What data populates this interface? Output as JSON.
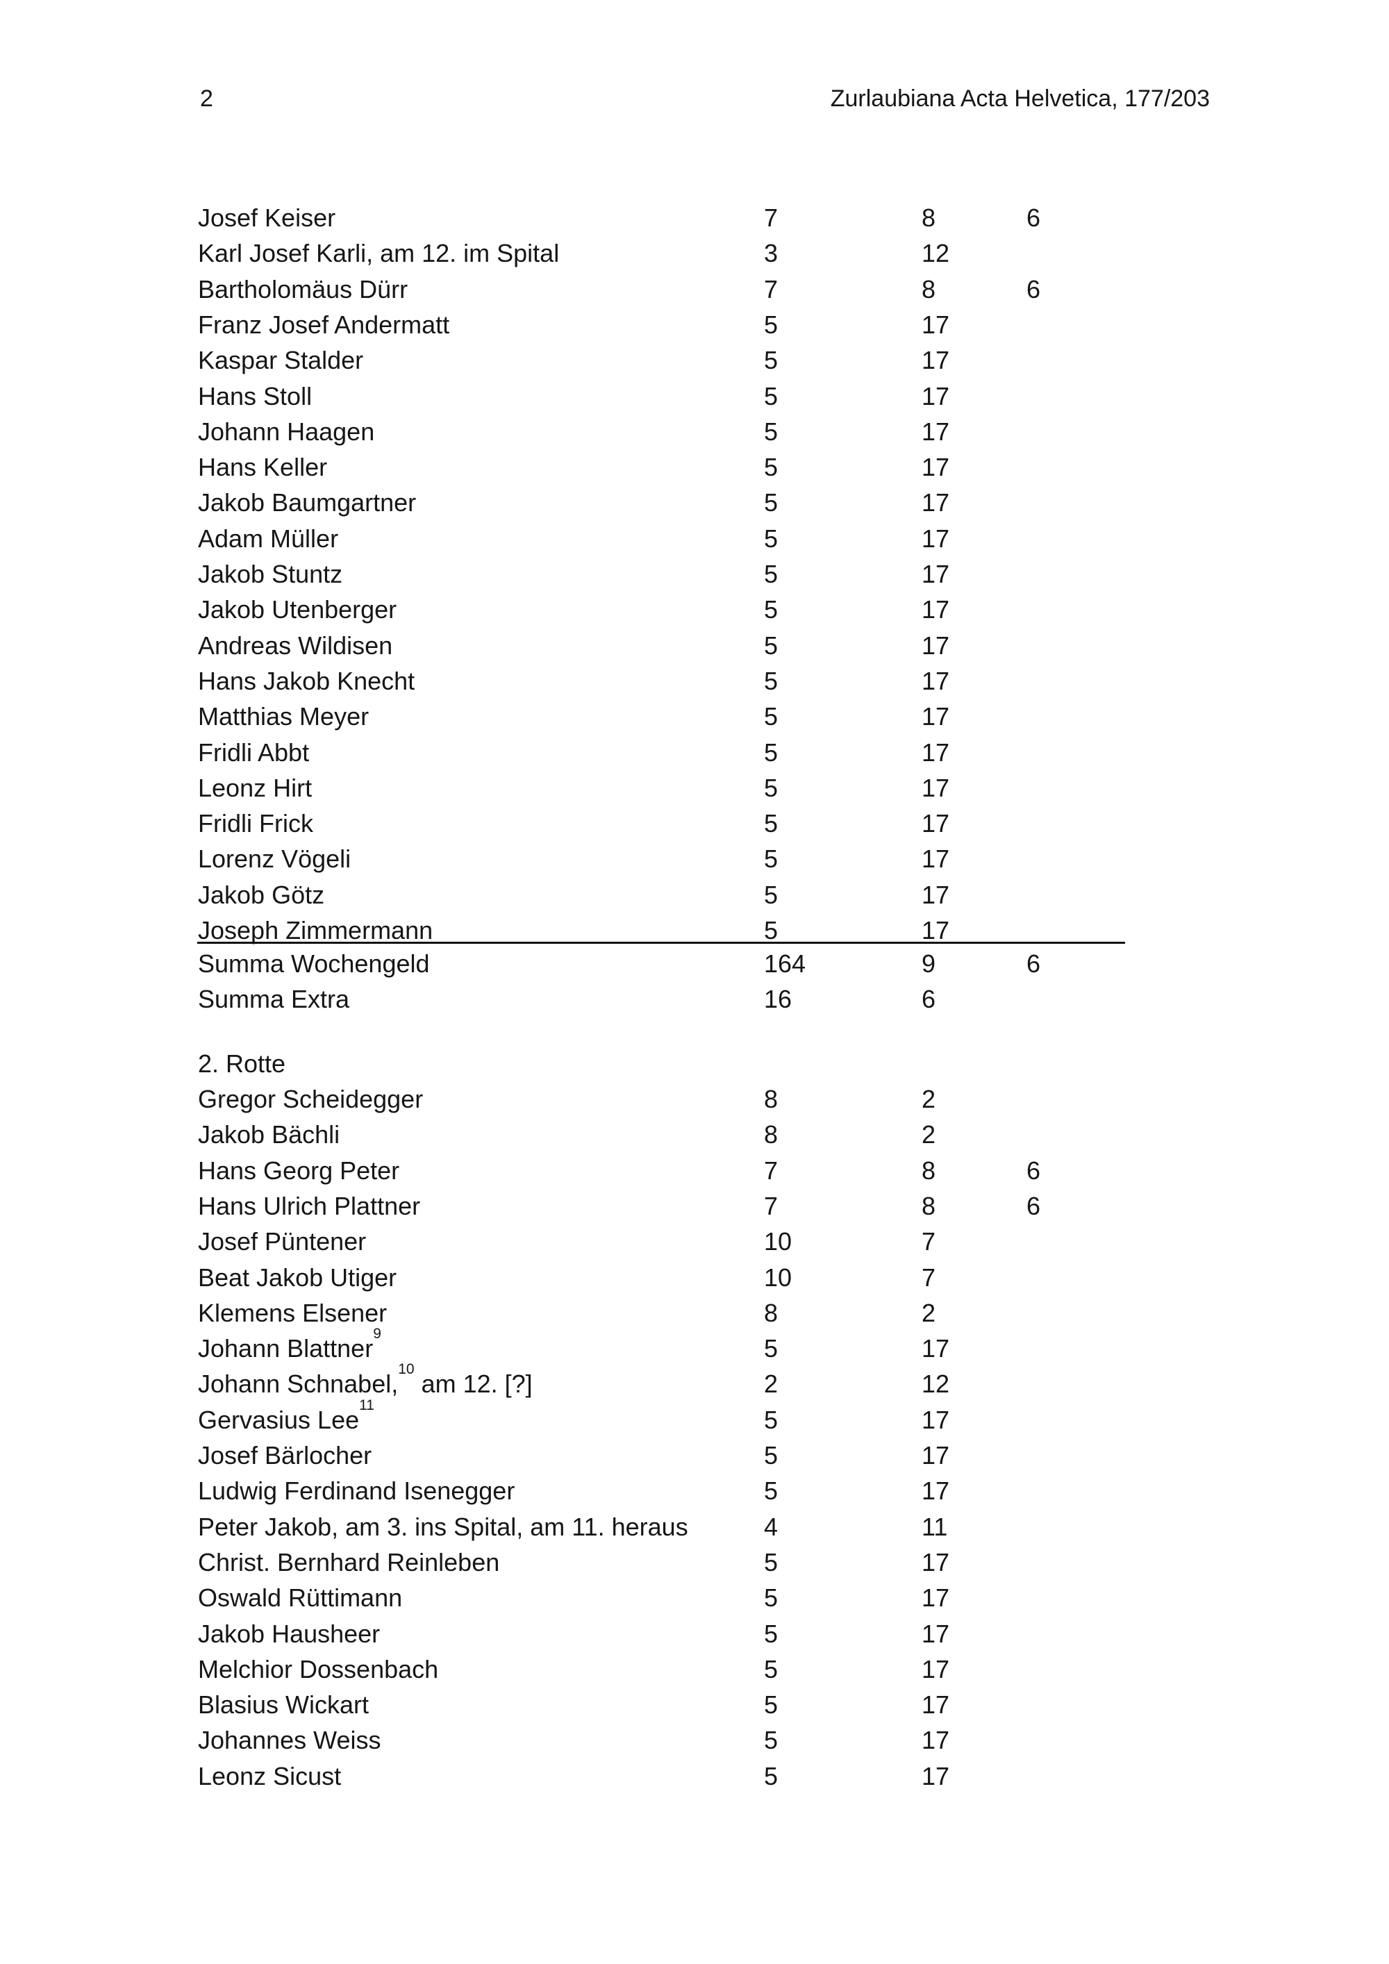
{
  "header": {
    "page_number": "2",
    "title": "Zurlaubiana Acta Helvetica, 177/203"
  },
  "sections": [
    {
      "heading": "",
      "rows": [
        {
          "pre": "Josef Keiser",
          "sup": "",
          "post": "",
          "c1": "7",
          "c2": "8",
          "c3": "6"
        },
        {
          "pre": "Karl Josef Karli, am 12. im Spital",
          "sup": "",
          "post": "",
          "c1": "3",
          "c2": "12",
          "c3": ""
        },
        {
          "pre": "Bartholomäus Dürr",
          "sup": "",
          "post": "",
          "c1": "7",
          "c2": "8",
          "c3": "6"
        },
        {
          "pre": "Franz Josef Andermatt",
          "sup": "",
          "post": "",
          "c1": "5",
          "c2": "17",
          "c3": ""
        },
        {
          "pre": "Kaspar Stalder",
          "sup": "",
          "post": "",
          "c1": "5",
          "c2": "17",
          "c3": ""
        },
        {
          "pre": "Hans Stoll",
          "sup": "",
          "post": "",
          "c1": "5",
          "c2": "17",
          "c3": ""
        },
        {
          "pre": "Johann Haagen",
          "sup": "",
          "post": "",
          "c1": "5",
          "c2": "17",
          "c3": ""
        },
        {
          "pre": "Hans Keller",
          "sup": "",
          "post": "",
          "c1": "5",
          "c2": "17",
          "c3": ""
        },
        {
          "pre": "Jakob Baumgartner",
          "sup": "",
          "post": "",
          "c1": "5",
          "c2": "17",
          "c3": ""
        },
        {
          "pre": "Adam Müller",
          "sup": "",
          "post": "",
          "c1": "5",
          "c2": "17",
          "c3": ""
        },
        {
          "pre": "Jakob Stuntz",
          "sup": "",
          "post": "",
          "c1": "5",
          "c2": "17",
          "c3": ""
        },
        {
          "pre": "Jakob Utenberger",
          "sup": "",
          "post": "",
          "c1": "5",
          "c2": "17",
          "c3": ""
        },
        {
          "pre": "Andreas Wildisen",
          "sup": "",
          "post": "",
          "c1": "5",
          "c2": "17",
          "c3": ""
        },
        {
          "pre": "Hans Jakob Knecht",
          "sup": "",
          "post": "",
          "c1": "5",
          "c2": "17",
          "c3": ""
        },
        {
          "pre": "Matthias Meyer",
          "sup": "",
          "post": "",
          "c1": "5",
          "c2": "17",
          "c3": ""
        },
        {
          "pre": "Fridli Abbt",
          "sup": "",
          "post": "",
          "c1": "5",
          "c2": "17",
          "c3": ""
        },
        {
          "pre": "Leonz Hirt",
          "sup": "",
          "post": "",
          "c1": "5",
          "c2": "17",
          "c3": ""
        },
        {
          "pre": "Fridli Frick",
          "sup": "",
          "post": "",
          "c1": "5",
          "c2": "17",
          "c3": ""
        },
        {
          "pre": "Lorenz Vögeli",
          "sup": "",
          "post": "",
          "c1": "5",
          "c2": "17",
          "c3": ""
        },
        {
          "pre": "Jakob Götz",
          "sup": "",
          "post": "",
          "c1": "5",
          "c2": "17",
          "c3": ""
        },
        {
          "pre": "Joseph Zimmermann",
          "sup": "",
          "post": "",
          "c1": "5",
          "c2": "17",
          "c3": ""
        }
      ],
      "summary": [
        {
          "pre": "Summa Wochengeld",
          "sup": "",
          "post": "",
          "c1": "164",
          "c2": "9",
          "c3": "6"
        },
        {
          "pre": "Summa Extra",
          "sup": "",
          "post": "",
          "c1": "16",
          "c2": "6",
          "c3": ""
        }
      ]
    },
    {
      "heading": "2. Rotte",
      "rows": [
        {
          "pre": "Gregor Scheidegger",
          "sup": "",
          "post": "",
          "c1": "8",
          "c2": "2",
          "c3": ""
        },
        {
          "pre": "Jakob Bächli",
          "sup": "",
          "post": "",
          "c1": "8",
          "c2": "2",
          "c3": ""
        },
        {
          "pre": "Hans Georg Peter",
          "sup": "",
          "post": "",
          "c1": "7",
          "c2": "8",
          "c3": "6"
        },
        {
          "pre": "Hans Ulrich Plattner",
          "sup": "",
          "post": "",
          "c1": "7",
          "c2": "8",
          "c3": "6"
        },
        {
          "pre": "Josef Püntener",
          "sup": "",
          "post": "",
          "c1": "10",
          "c2": "7",
          "c3": ""
        },
        {
          "pre": "Beat Jakob Utiger",
          "sup": "",
          "post": "",
          "c1": "10",
          "c2": "7",
          "c3": ""
        },
        {
          "pre": "Klemens Elsener",
          "sup": "",
          "post": "",
          "c1": "8",
          "c2": "2",
          "c3": ""
        },
        {
          "pre": "Johann Blattner",
          "sup": "9",
          "post": "",
          "c1": "5",
          "c2": "17",
          "c3": ""
        },
        {
          "pre": "Johann Schnabel,",
          "sup": "10",
          "post": " am 12. [?]",
          "c1": "2",
          "c2": "12",
          "c3": ""
        },
        {
          "pre": "Gervasius Lee",
          "sup": "11",
          "post": "",
          "c1": "5",
          "c2": "17",
          "c3": ""
        },
        {
          "pre": "Josef Bärlocher",
          "sup": "",
          "post": "",
          "c1": "5",
          "c2": "17",
          "c3": ""
        },
        {
          "pre": "Ludwig Ferdinand Isenegger",
          "sup": "",
          "post": "",
          "c1": "5",
          "c2": "17",
          "c3": ""
        },
        {
          "pre": "Peter Jakob, am 3. ins Spital, am 11. heraus",
          "sup": "",
          "post": "",
          "c1": "4",
          "c2": "11",
          "c3": ""
        },
        {
          "pre": "Christ. Bernhard Reinleben",
          "sup": "",
          "post": "",
          "c1": "5",
          "c2": "17",
          "c3": ""
        },
        {
          "pre": "Oswald Rüttimann",
          "sup": "",
          "post": "",
          "c1": "5",
          "c2": "17",
          "c3": ""
        },
        {
          "pre": "Jakob Hausheer",
          "sup": "",
          "post": "",
          "c1": "5",
          "c2": "17",
          "c3": ""
        },
        {
          "pre": "Melchior Dossenbach",
          "sup": "",
          "post": "",
          "c1": "5",
          "c2": "17",
          "c3": ""
        },
        {
          "pre": "Blasius Wickart",
          "sup": "",
          "post": "",
          "c1": "5",
          "c2": "17",
          "c3": ""
        },
        {
          "pre": "Johannes Weiss",
          "sup": "",
          "post": "",
          "c1": "5",
          "c2": "17",
          "c3": ""
        },
        {
          "pre": "Leonz Sicust",
          "sup": "",
          "post": "",
          "c1": "5",
          "c2": "17",
          "c3": ""
        }
      ]
    }
  ]
}
